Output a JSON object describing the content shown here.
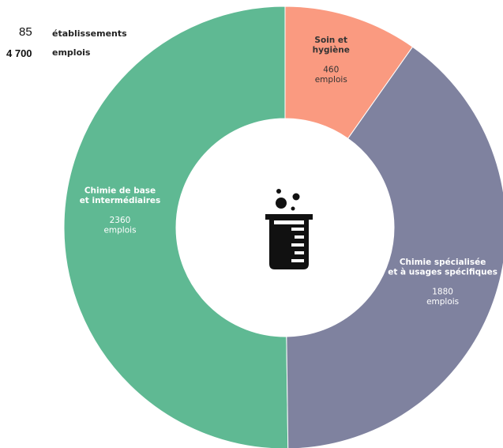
{
  "stats": {
    "establishments_value": "85",
    "establishments_label": "établissements",
    "jobs_value": "4 700",
    "jobs_label": "emplois"
  },
  "chart_data": {
    "type": "pie",
    "variant": "donut",
    "center_icon": "lab-beaker-icon",
    "unit": "emplois",
    "segments": [
      {
        "name_lines": [
          "Chimie de base",
          "et intermédiaires"
        ],
        "value": 2360,
        "value_label": "2360",
        "unit_label": "emplois",
        "color": "#5fb993",
        "text_color": "#ffffff"
      },
      {
        "name_lines": [
          "Soin et",
          "hygiène"
        ],
        "value": 460,
        "value_label": "460",
        "unit_label": "emplois",
        "color": "#fa9a80",
        "text_color": "#333333"
      },
      {
        "name_lines": [
          "Chimie spécialisée",
          "et à usages spécifiques"
        ],
        "value": 1880,
        "value_label": "1880",
        "unit_label": "emplois",
        "color": "#7f829f",
        "text_color": "#ffffff"
      }
    ]
  }
}
